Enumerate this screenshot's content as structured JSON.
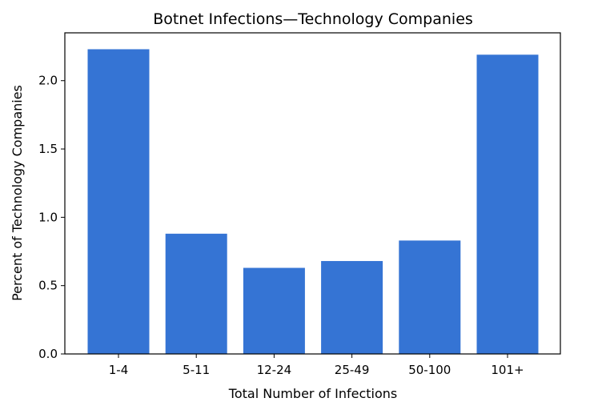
{
  "chart_data": {
    "type": "bar",
    "title": "Botnet Infections—Technology Companies",
    "xlabel": "Total Number of Infections",
    "ylabel": "Percent of Technology Companies",
    "categories": [
      "1-4",
      "5-11",
      "12-24",
      "25-49",
      "50-100",
      "101+"
    ],
    "values": [
      2.23,
      0.88,
      0.63,
      0.68,
      0.83,
      2.19
    ],
    "ylim": [
      0,
      2.35
    ],
    "yticks": [
      "0.0",
      "0.5",
      "1.0",
      "1.5",
      "2.0"
    ],
    "bar_color": "#3574d4",
    "grid": false
  }
}
